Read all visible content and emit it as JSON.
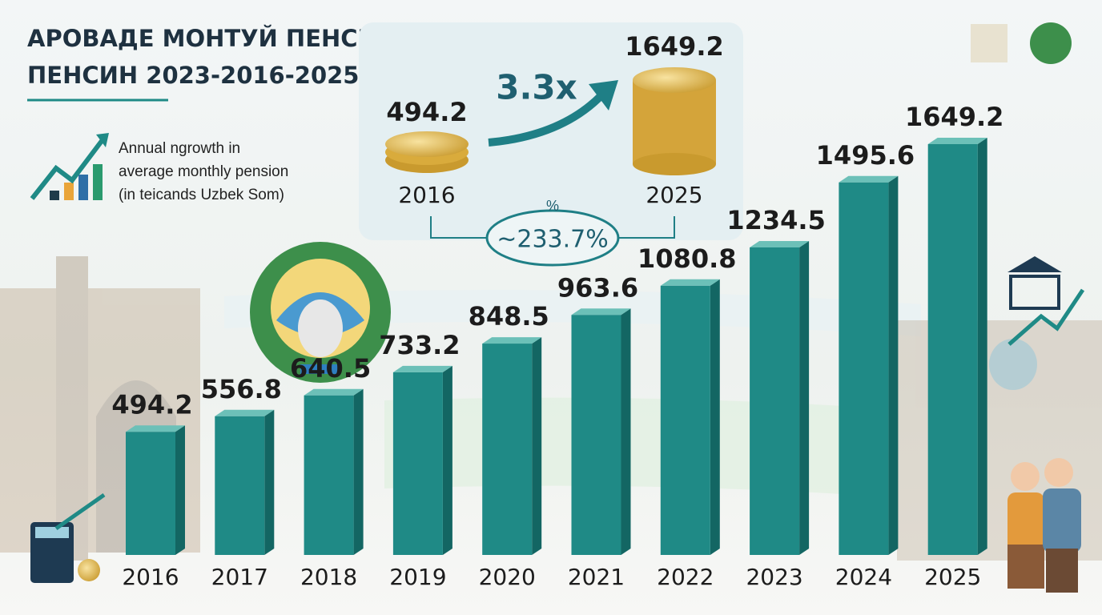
{
  "chart_data": {
    "type": "bar",
    "title": [
      "АРОВАДЕ МОНТУЙ ПЕНСИЙ",
      "ПЕНСИН 2023-2016-2025"
    ],
    "subtitle": [
      "Annual ngrowth in",
      "average monthly pension",
      "(in teicands Uzbek Som)"
    ],
    "categories": [
      "2016",
      "2017",
      "2018",
      "2019",
      "2020",
      "2021",
      "2022",
      "2023",
      "2024",
      "2025"
    ],
    "values": [
      494.2,
      556.8,
      640.5,
      733.2,
      848.5,
      963.6,
      1080.8,
      1234.5,
      1495.6,
      1649.2
    ],
    "color": "#1f8a86",
    "annotations": {
      "multiplier": "3.3x",
      "percent_change": "~233.7%",
      "percent_icon": "%"
    }
  }
}
